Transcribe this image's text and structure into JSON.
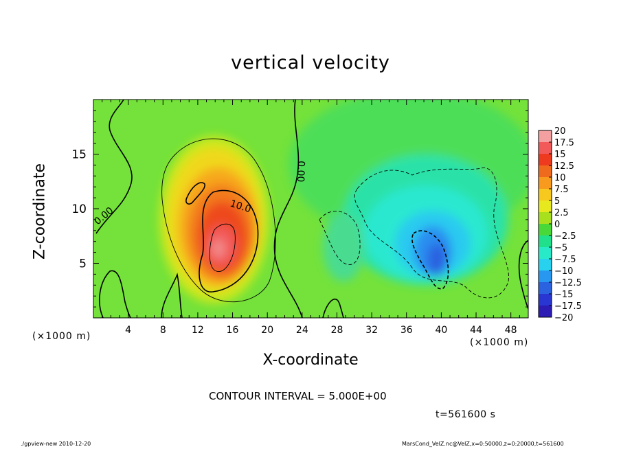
{
  "chart_data": {
    "type": "heatmap",
    "title": "vertical velocity",
    "xlabel": "X-coordinate",
    "ylabel": "Z-coordinate",
    "x_unit_label": "(×1000 m)",
    "xlim": [
      0,
      50
    ],
    "ylim": [
      0,
      20
    ],
    "x_ticks": [
      4,
      8,
      12,
      16,
      20,
      24,
      28,
      32,
      36,
      40,
      44,
      48
    ],
    "y_ticks": [
      5,
      10,
      15
    ],
    "colorbar": {
      "levels": [
        20,
        17.5,
        15,
        12.5,
        10,
        7.5,
        5,
        2.5,
        0,
        -2.5,
        -5,
        -7.5,
        -10,
        -12.5,
        -15,
        -17.5,
        -20
      ],
      "labels": [
        "20",
        "17.5",
        "15",
        "12.5",
        "10",
        "7.5",
        "5",
        "2.5",
        "0",
        "−2.5",
        "−5",
        "−7.5",
        "−10",
        "−12.5",
        "−15",
        "−17.5",
        "−20"
      ],
      "colors": [
        "#f4a0a0",
        "#f25a5a",
        "#ee3a1f",
        "#f06a1e",
        "#f79a1e",
        "#f7c81e",
        "#e8e81e",
        "#a8e01e",
        "#48d838",
        "#20e08c",
        "#28eac8",
        "#28d2ee",
        "#2897f0",
        "#2a62e0",
        "#2a36d2",
        "#2c1cb4",
        "#5a0eb0"
      ]
    },
    "contour_labels": [
      "10.0",
      "0.00",
      "0.00"
    ],
    "contour_interval": "CONTOUR INTERVAL = 5.000E+00",
    "time": "t=561600 s",
    "features": [
      {
        "kind": "updraft",
        "x_center": 14.5,
        "z_center": 6.5,
        "peak": 17.5
      },
      {
        "kind": "downdraft",
        "x_center": 39,
        "z_center": 5,
        "peak": -12.5
      }
    ]
  },
  "footer": {
    "left": "./gpview-new   2010-12-20",
    "right": "MarsCond_VelZ.nc@VelZ,x=0:50000,z=0:20000,t=561600"
  }
}
